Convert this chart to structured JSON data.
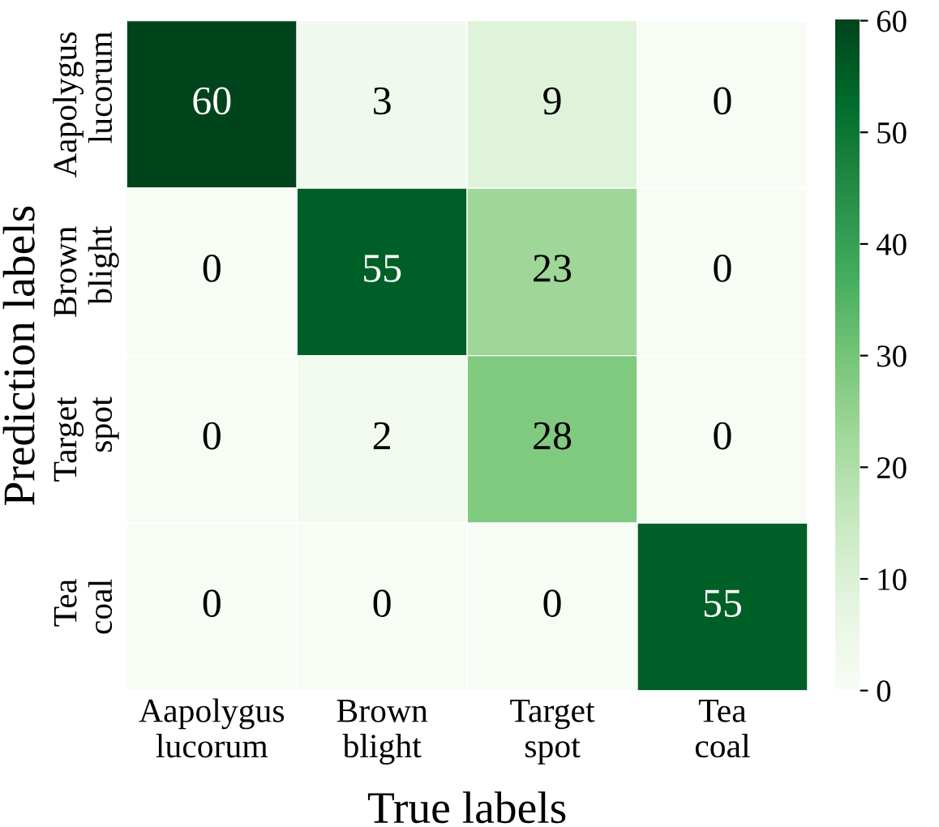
{
  "chart_data": {
    "type": "heatmap",
    "xlabel": "True labels",
    "ylabel": "Prediction labels",
    "categories": [
      "Aapolygus\nlucorum",
      "Brown\nblight",
      "Target\nspot",
      "Tea\ncoal"
    ],
    "y_categories": [
      "Aapolygus\nlucorum",
      "Brown\nblight",
      "Target\nspot",
      "Tea\ncoal"
    ],
    "cells": [
      [
        60,
        3,
        9,
        0
      ],
      [
        0,
        55,
        23,
        0
      ],
      [
        0,
        2,
        28,
        0
      ],
      [
        0,
        0,
        0,
        55
      ]
    ],
    "data_labels": true,
    "clim": [
      0,
      60
    ],
    "cticks": [
      0,
      10,
      20,
      30,
      40,
      50,
      60
    ]
  }
}
